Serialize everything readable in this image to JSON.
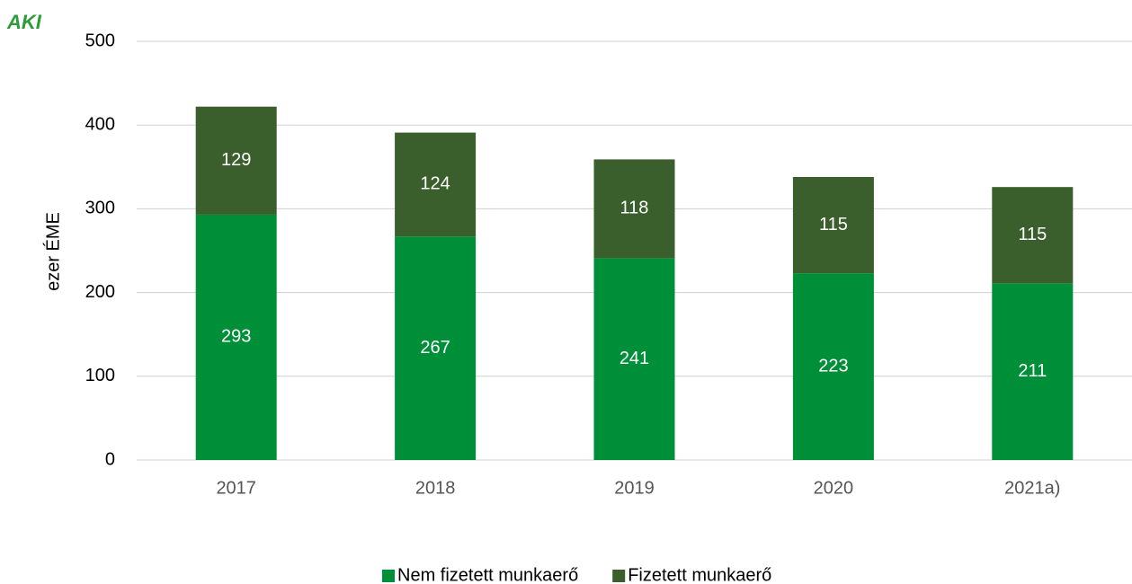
{
  "logo": "AKI",
  "chart_data": {
    "type": "stacked_bar",
    "ylabel": "ezer ÉME",
    "categories": [
      "2017",
      "2018",
      "2019",
      "2020",
      "2021a)"
    ],
    "series": [
      {
        "name": "Nem fizetett munkaerő",
        "color": "#008f39",
        "values": [
          293,
          267,
          241,
          223,
          211
        ]
      },
      {
        "name": "Fizetett munkaerő",
        "color": "#3a5f2c",
        "values": [
          129,
          124,
          118,
          115,
          115
        ]
      }
    ],
    "ylim": [
      0,
      500
    ],
    "yticks": [
      0,
      100,
      200,
      300,
      400,
      500
    ],
    "grid": true,
    "legend": "bottom"
  }
}
